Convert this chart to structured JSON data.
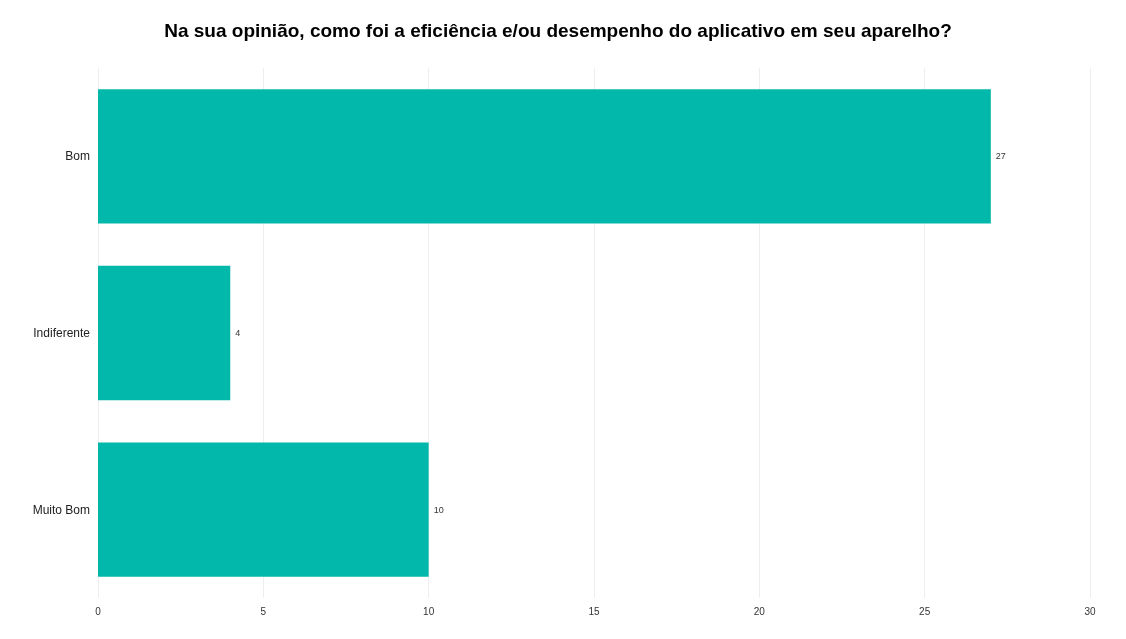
{
  "chart_data": {
    "type": "bar",
    "orientation": "horizontal",
    "title": "Na sua opinião, como foi a eficiência e/ou desempenho do aplicativo em seu aparelho?",
    "categories": [
      "Bom",
      "Indiferente",
      "Muito Bom"
    ],
    "values": [
      27,
      4,
      10
    ],
    "color": "#02b8aa",
    "data_labels": true,
    "xlim": [
      0,
      30
    ],
    "xticks": [
      0,
      5,
      10,
      15,
      20,
      25,
      30
    ],
    "grid": "x"
  }
}
